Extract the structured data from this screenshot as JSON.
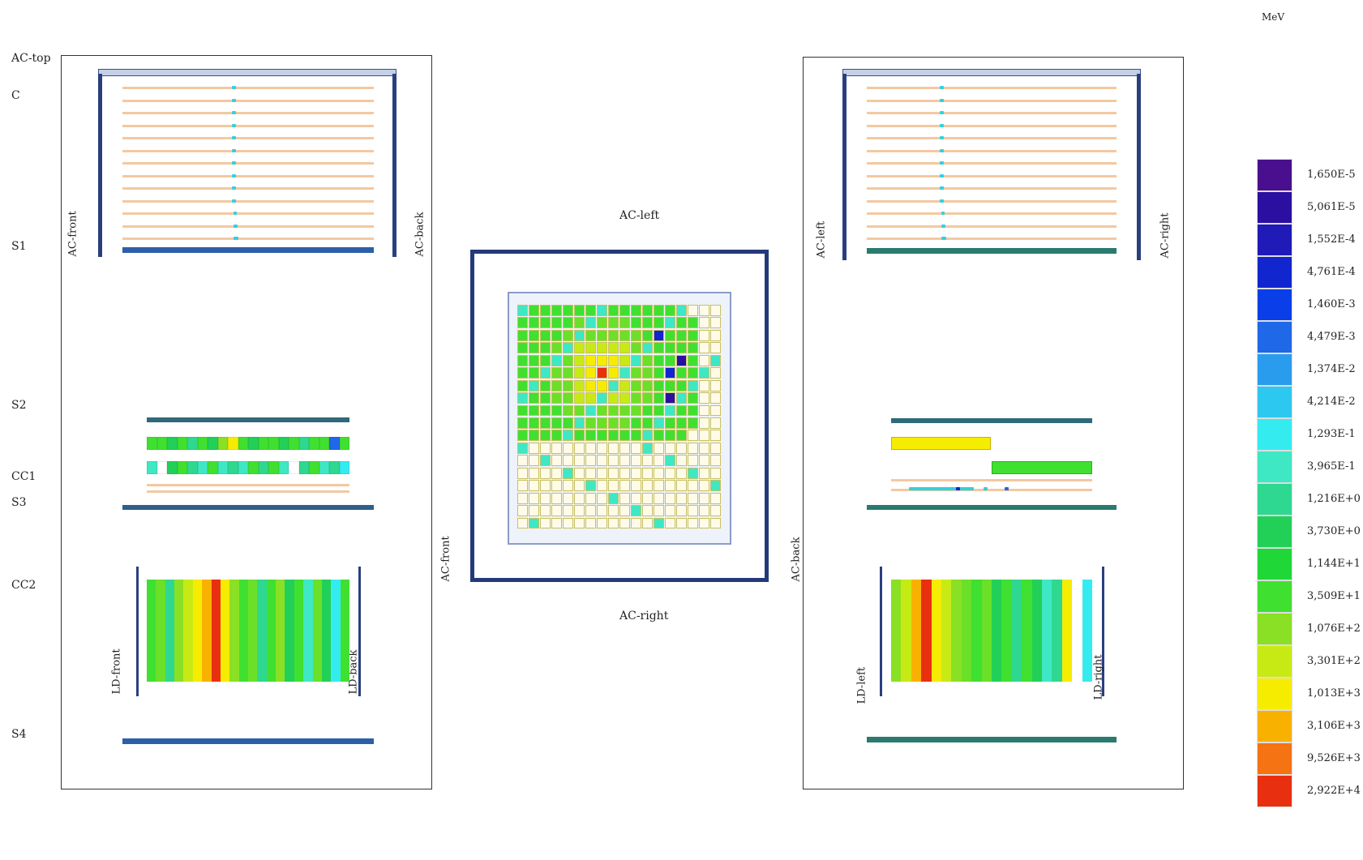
{
  "layer_labels": {
    "ac_top": "AC-top",
    "c": "C",
    "s1": "S1",
    "s2": "S2",
    "cc1": "CC1",
    "s3": "S3",
    "cc2": "CC2",
    "s4": "S4"
  },
  "left_panel": {
    "ac_front": "AC-front",
    "ac_back": "AC-back",
    "ld_front": "LD-front",
    "ld_back": "LD-back"
  },
  "center_panel": {
    "ac_left": "AC-left",
    "ac_right": "AC-right",
    "ac_front": "AC-front",
    "ac_back": "AC-back"
  },
  "right_panel": {
    "ac_left": "AC-left",
    "ac_right": "AC-right",
    "ld_left": "LD-left",
    "ld_right": "LD-right"
  },
  "colorbar": {
    "unit": "MeV",
    "labels": [
      "1,650E-5",
      "5,061E-5",
      "1,552E-4",
      "4,761E-4",
      "1,460E-3",
      "4,479E-3",
      "1,374E-2",
      "4,214E-2",
      "1,293E-1",
      "3,965E-1",
      "1,216E+0",
      "3,730E+0",
      "1,144E+1",
      "3,509E+1",
      "1,076E+2",
      "3,301E+2",
      "1,013E+3",
      "3,106E+3",
      "9,526E+3",
      "2,922E+4"
    ],
    "colors": [
      "#4a0f8f",
      "#2a0fa0",
      "#1f1ab8",
      "#1226d0",
      "#0a3ee8",
      "#1f68e8",
      "#2a9cee",
      "#2cc8f0",
      "#34ecf0",
      "#3ee8c4",
      "#2ed890",
      "#22d058",
      "#1fd838",
      "#40e030",
      "#8ae024",
      "#c8ea14",
      "#f6ec00",
      "#f9b100",
      "#f57312",
      "#e83010"
    ]
  },
  "colors": {
    "navy": "#233a7a",
    "strip": "#f3c9a0",
    "cyan": "#33d0e0"
  }
}
